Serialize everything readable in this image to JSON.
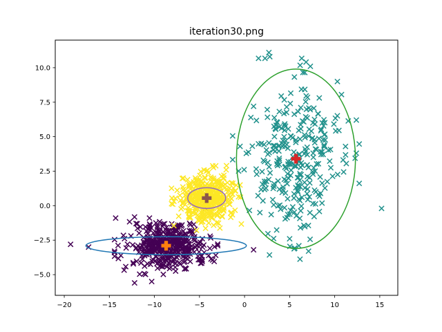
{
  "chart_data": {
    "type": "scatter",
    "title": "iteration30.png",
    "xlabel": "",
    "ylabel": "",
    "xlim": [
      -21,
      17
    ],
    "ylim": [
      -6.5,
      12
    ],
    "x_ticks": [
      -20,
      -15,
      -10,
      -5,
      0,
      5,
      10,
      15
    ],
    "x_tick_labels": [
      "−20",
      "−15",
      "−10",
      "−5",
      "0",
      "5",
      "10",
      "15"
    ],
    "y_ticks": [
      -5.0,
      -2.5,
      0.0,
      2.5,
      5.0,
      7.5,
      10.0
    ],
    "y_tick_labels": [
      "−5.0",
      "−2.5",
      "0.0",
      "2.5",
      "5.0",
      "7.5",
      "10.0"
    ],
    "grid": false,
    "marker": "x",
    "clusters": [
      {
        "color": "#440154",
        "centroid": [
          -8.7,
          -2.9
        ],
        "centroid_color": "#ff7f0e",
        "ellipse": {
          "center": [
            -8.7,
            -2.9
          ],
          "rx": 8.9,
          "ry": 0.65,
          "color": "#1f77b4"
        },
        "spread": [
          2.2,
          0.8
        ],
        "count": 420,
        "extreme_points": [
          [
            -19.3,
            -2.8
          ],
          [
            -17.3,
            -3.0
          ],
          [
            -14.3,
            -0.9
          ],
          [
            -12.2,
            -5.6
          ],
          [
            -10.3,
            -5.5
          ],
          [
            -4.3,
            -0.2
          ],
          [
            1.0,
            -3.2
          ],
          [
            -3.2,
            -3.6
          ]
        ]
      },
      {
        "color": "#fde725",
        "centroid": [
          -4.2,
          0.55
        ],
        "centroid_color": "#8c564b",
        "ellipse": {
          "center": [
            -4.2,
            0.55
          ],
          "rx": 2.1,
          "ry": 0.75,
          "color": "#9467bd"
        },
        "spread": [
          1.5,
          0.9
        ],
        "count": 380,
        "extreme_points": [
          [
            -2.0,
            2.9
          ],
          [
            -6.2,
            0.5
          ],
          [
            -0.5,
            1.5
          ],
          [
            -6.8,
            2.0
          ]
        ]
      },
      {
        "color": "#21918c",
        "centroid": [
          5.7,
          3.4
        ],
        "centroid_color": "#d62728",
        "ellipse": {
          "center": [
            5.7,
            3.4
          ],
          "rx": 6.6,
          "ry": 6.5,
          "color": "#2ca02c"
        },
        "spread": [
          2.7,
          2.8
        ],
        "count": 300,
        "extreme_points": [
          [
            2.7,
            11.1
          ],
          [
            2.8,
            10.8
          ],
          [
            7.3,
            10.1
          ],
          [
            10.3,
            9.0
          ],
          [
            15.2,
            -0.2
          ],
          [
            12.4,
            3.8
          ],
          [
            1.0,
            7.2
          ],
          [
            -0.5,
            4.3
          ],
          [
            7.1,
            -3.3
          ],
          [
            5.0,
            -2.4
          ],
          [
            1.7,
            -0.5
          ]
        ]
      }
    ]
  }
}
